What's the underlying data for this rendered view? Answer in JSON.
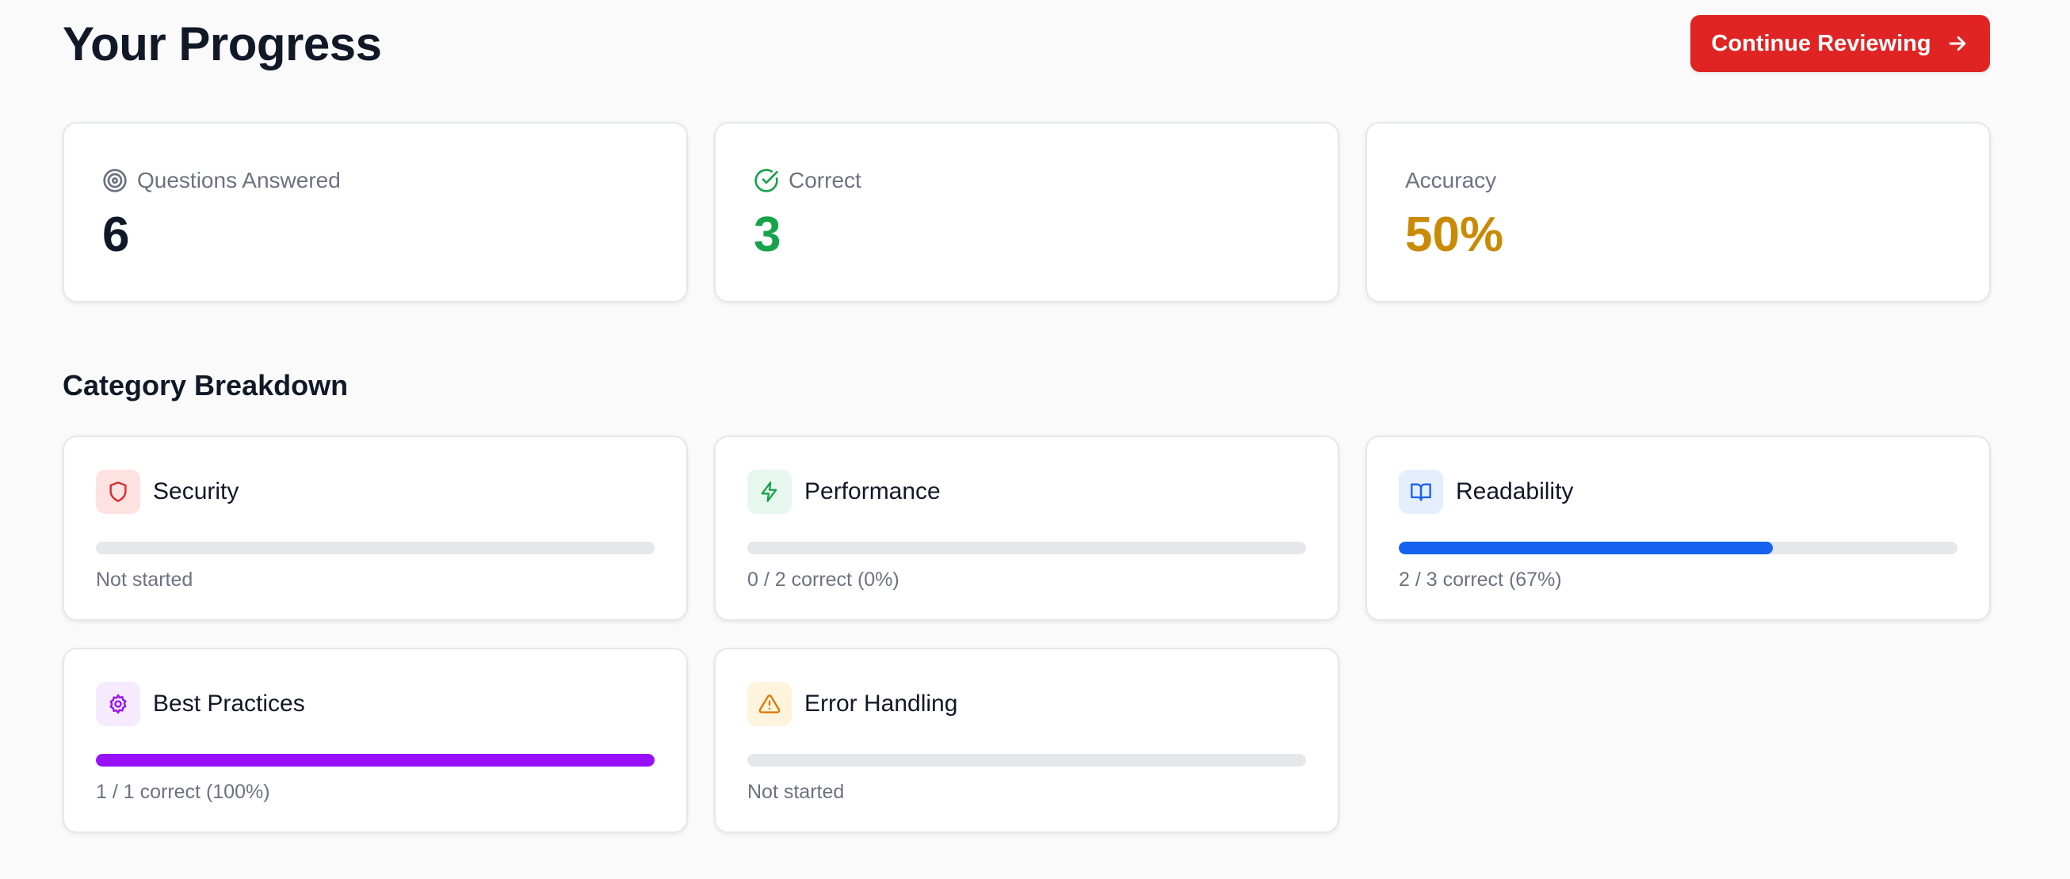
{
  "header": {
    "title": "Your Progress",
    "continue_label": "Continue Reviewing",
    "continue_icon": "arrow-right-icon"
  },
  "stats": [
    {
      "label": "Questions Answered",
      "value": "6",
      "icon": "target-icon",
      "color": "#111827"
    },
    {
      "label": "Correct",
      "value": "3",
      "icon": "check-circle-icon",
      "color": "#16a34a"
    },
    {
      "label": "Accuracy",
      "value": "50%",
      "icon": "",
      "color": "#ca8a04"
    }
  ],
  "category_section": {
    "title": "Category Breakdown",
    "categories": [
      {
        "name": "Security",
        "status": "Not started",
        "progress": 0,
        "icon": "shield-icon",
        "color": "#dc2626",
        "bg": "#fee2e2"
      },
      {
        "name": "Performance",
        "status": "0 / 2 correct (0%)",
        "progress": 0,
        "icon": "lightning-icon",
        "color": "#16a34a",
        "bg": "#e7f7ee"
      },
      {
        "name": "Readability",
        "status": "2 / 3 correct (67%)",
        "progress": 0.67,
        "icon": "book-open-icon",
        "color": "#1762f0",
        "bg": "#e5eefc"
      },
      {
        "name": "Best Practices",
        "status": "1 / 1 correct (100%)",
        "progress": 1.0,
        "icon": "gear-icon",
        "color": "#9810fa",
        "bg": "#f6ebfd"
      },
      {
        "name": "Error Handling",
        "status": "Not started",
        "progress": 0,
        "icon": "warning-triangle-icon",
        "color": "#d97706",
        "bg": "#fef3dc"
      }
    ]
  }
}
